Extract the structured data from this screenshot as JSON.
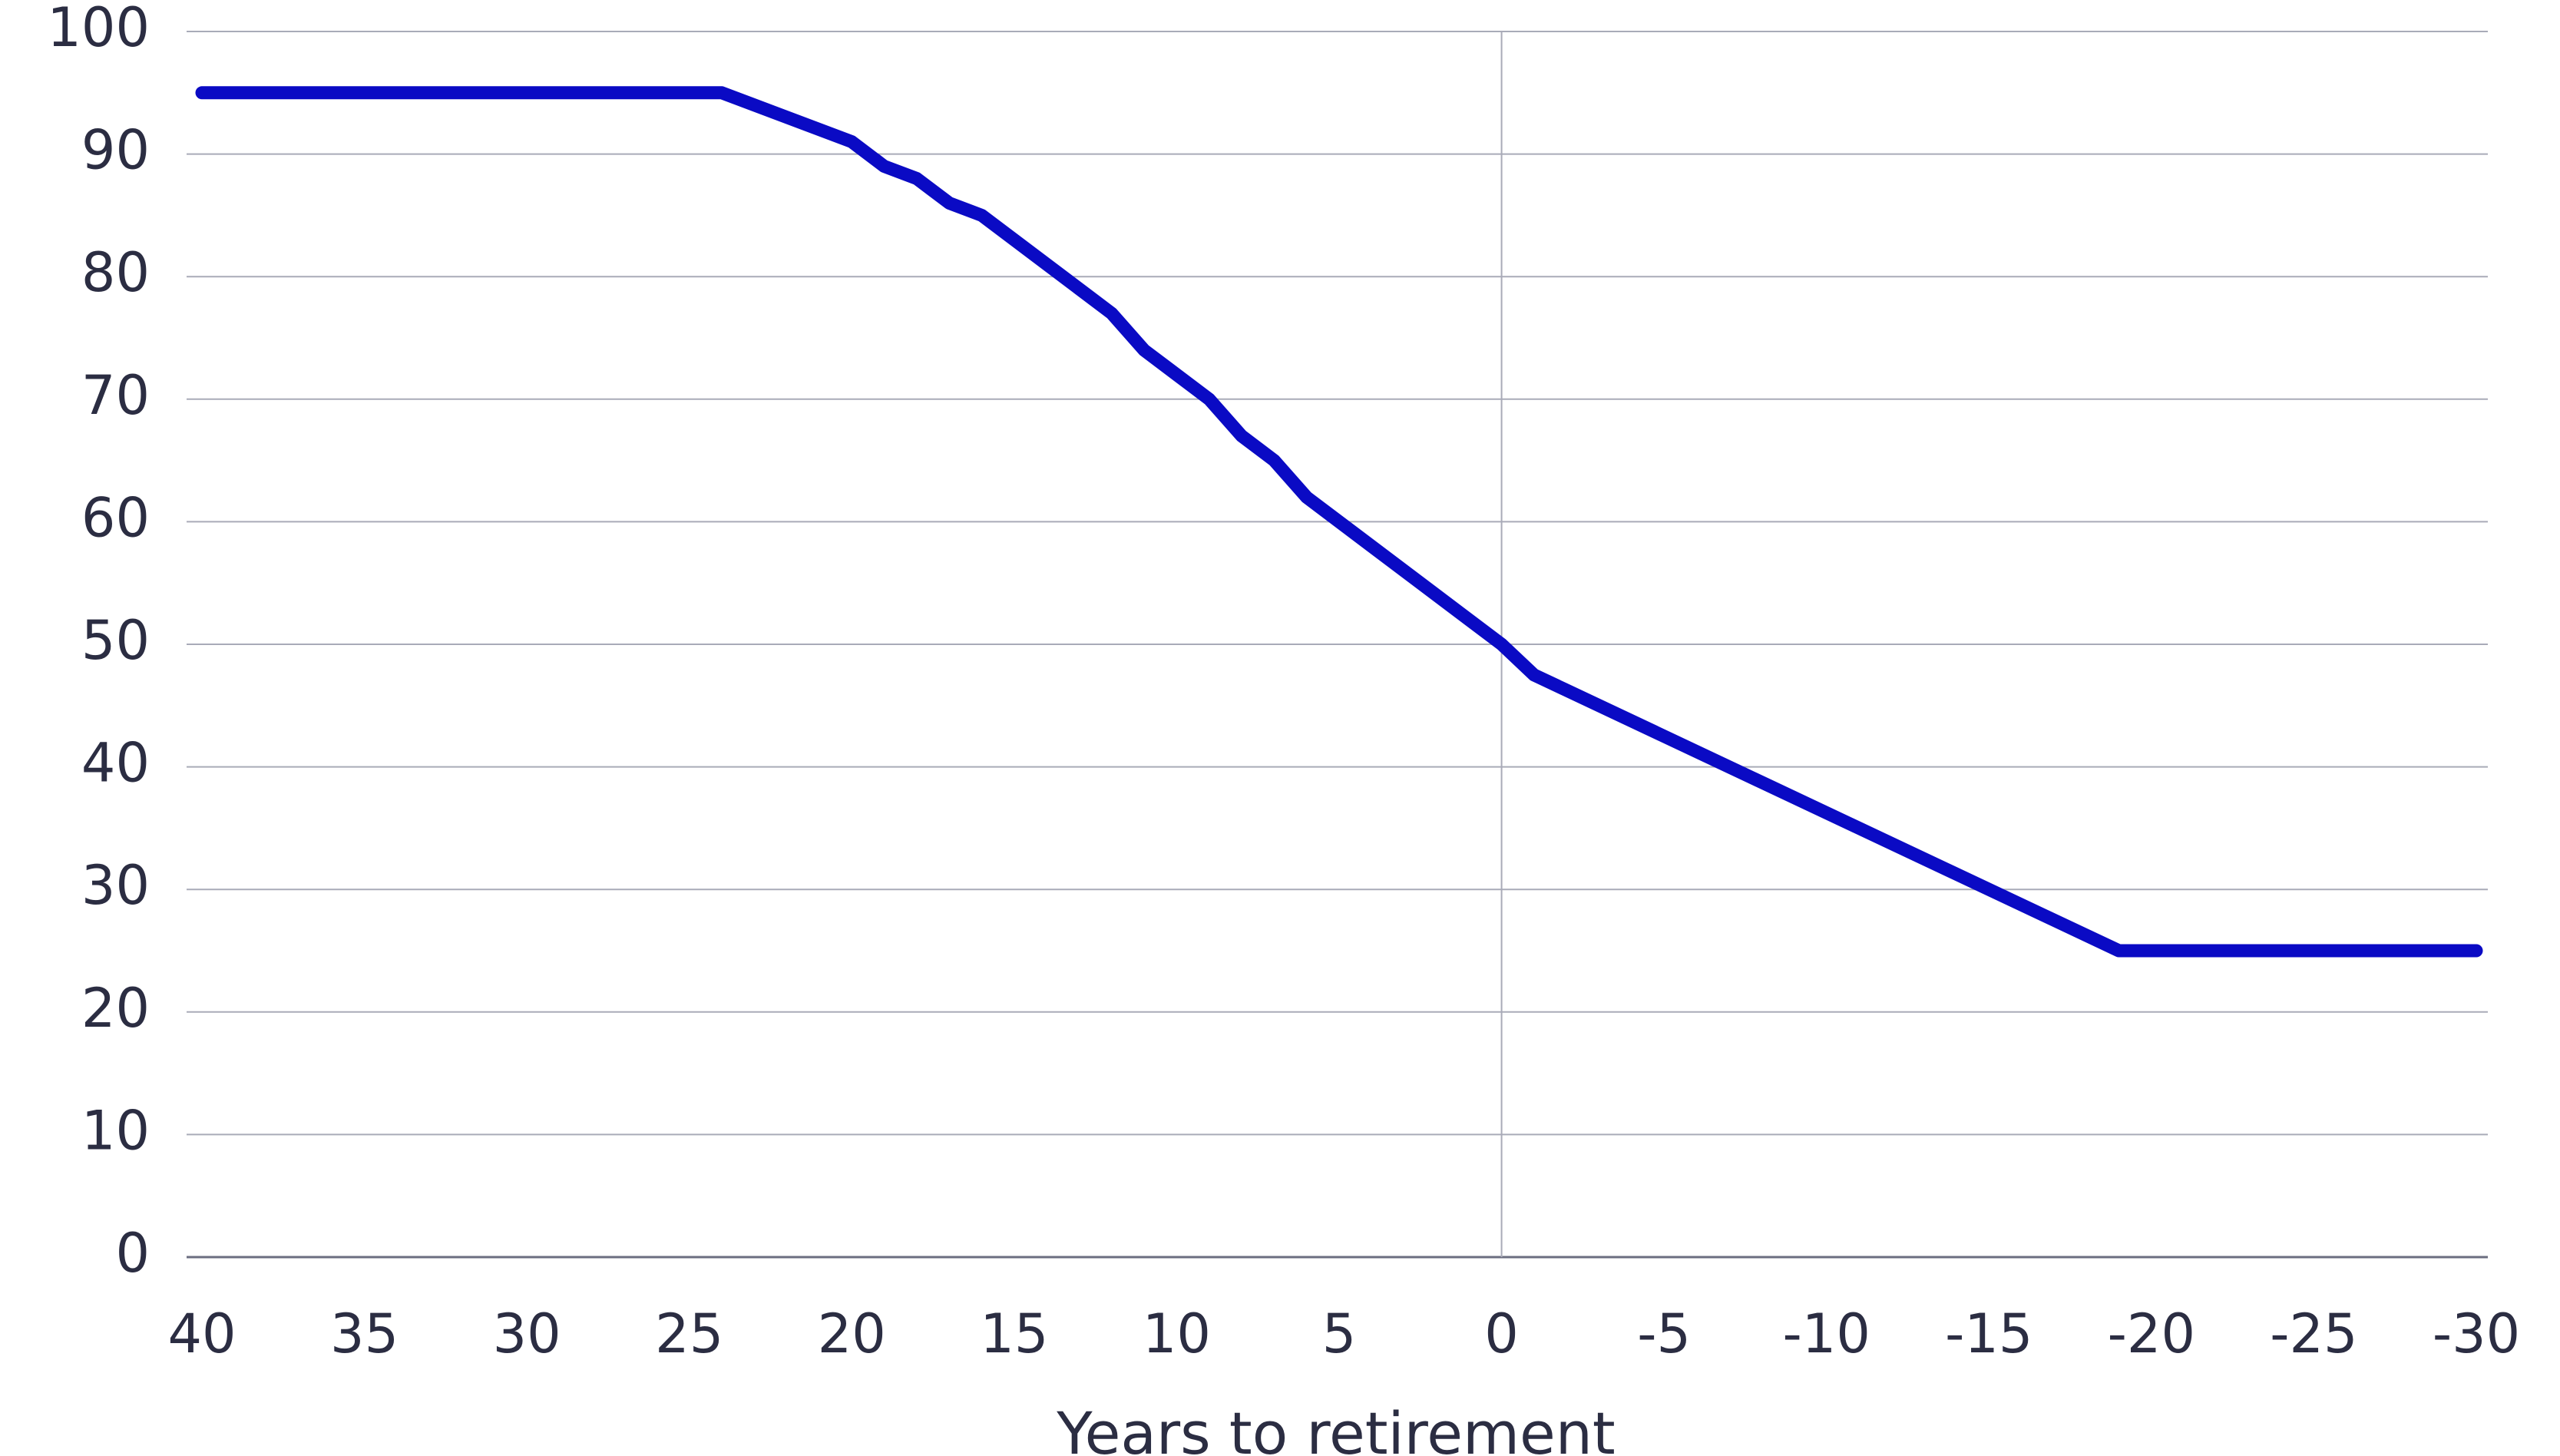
{
  "chart_data": {
    "type": "line",
    "x_label": "Years to retirement",
    "x": [
      40,
      24,
      20,
      19,
      18,
      17,
      16,
      12,
      11,
      9,
      8,
      7,
      6,
      0,
      -1,
      -19,
      -30
    ],
    "values": [
      95,
      95,
      91,
      89,
      88,
      86,
      85,
      77,
      74,
      70,
      67,
      65,
      62,
      50,
      47.5,
      25,
      25
    ],
    "color": "#0a0ac4",
    "xlim": [
      40,
      -30
    ],
    "xticks": [
      40,
      35,
      30,
      25,
      20,
      15,
      10,
      5,
      0,
      -5,
      -10,
      -15,
      -20,
      -25,
      -30
    ],
    "ylim": [
      0,
      100
    ],
    "yticks": [
      0,
      10,
      20,
      30,
      40,
      50,
      60,
      70,
      80,
      90,
      100
    ],
    "grid": true,
    "vline": 0
  }
}
